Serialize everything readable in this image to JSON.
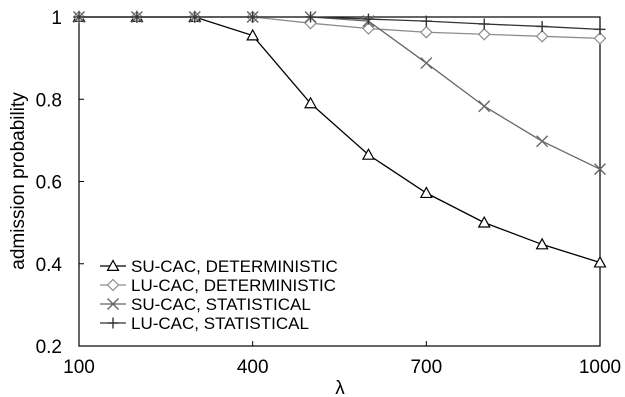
{
  "chart_data": {
    "type": "line",
    "title": "",
    "xlabel": "λ",
    "ylabel": "admission probability",
    "xlim": [
      100,
      1000
    ],
    "ylim": [
      0.2,
      1
    ],
    "xticks": [
      100,
      400,
      700,
      1000
    ],
    "yticks": [
      0.2,
      0.4,
      0.6,
      0.8,
      1
    ],
    "ytick_labels": [
      "0.2",
      "0.4",
      "0.6",
      "0.8",
      "1"
    ],
    "grid": false,
    "legend_position": "bottom-left",
    "x": [
      100,
      200,
      300,
      400,
      500,
      600,
      700,
      800,
      900,
      1000
    ],
    "series": [
      {
        "name": "SU-CAC, DETERMINISTIC",
        "marker": "triangle",
        "color": "#000000",
        "values": [
          1,
          1,
          1,
          0.955,
          0.79,
          0.665,
          0.572,
          0.5,
          0.447,
          0.403
        ]
      },
      {
        "name": "LU-CAC, DETERMINISTIC",
        "marker": "diamond",
        "color": "#8c8c8c",
        "values": [
          1,
          1,
          1,
          1,
          0.985,
          0.972,
          0.963,
          0.958,
          0.953,
          0.948
        ]
      },
      {
        "name": "SU-CAC, STATISTICAL",
        "marker": "x",
        "color": "#666666",
        "values": [
          1,
          1,
          1,
          1,
          1,
          0.99,
          0.888,
          0.783,
          0.698,
          0.63
        ]
      },
      {
        "name": "LU-CAC, STATISTICAL",
        "marker": "plus",
        "color": "#333333",
        "values": [
          1,
          1,
          1,
          1,
          1,
          0.995,
          0.99,
          0.983,
          0.977,
          0.97
        ]
      }
    ]
  }
}
